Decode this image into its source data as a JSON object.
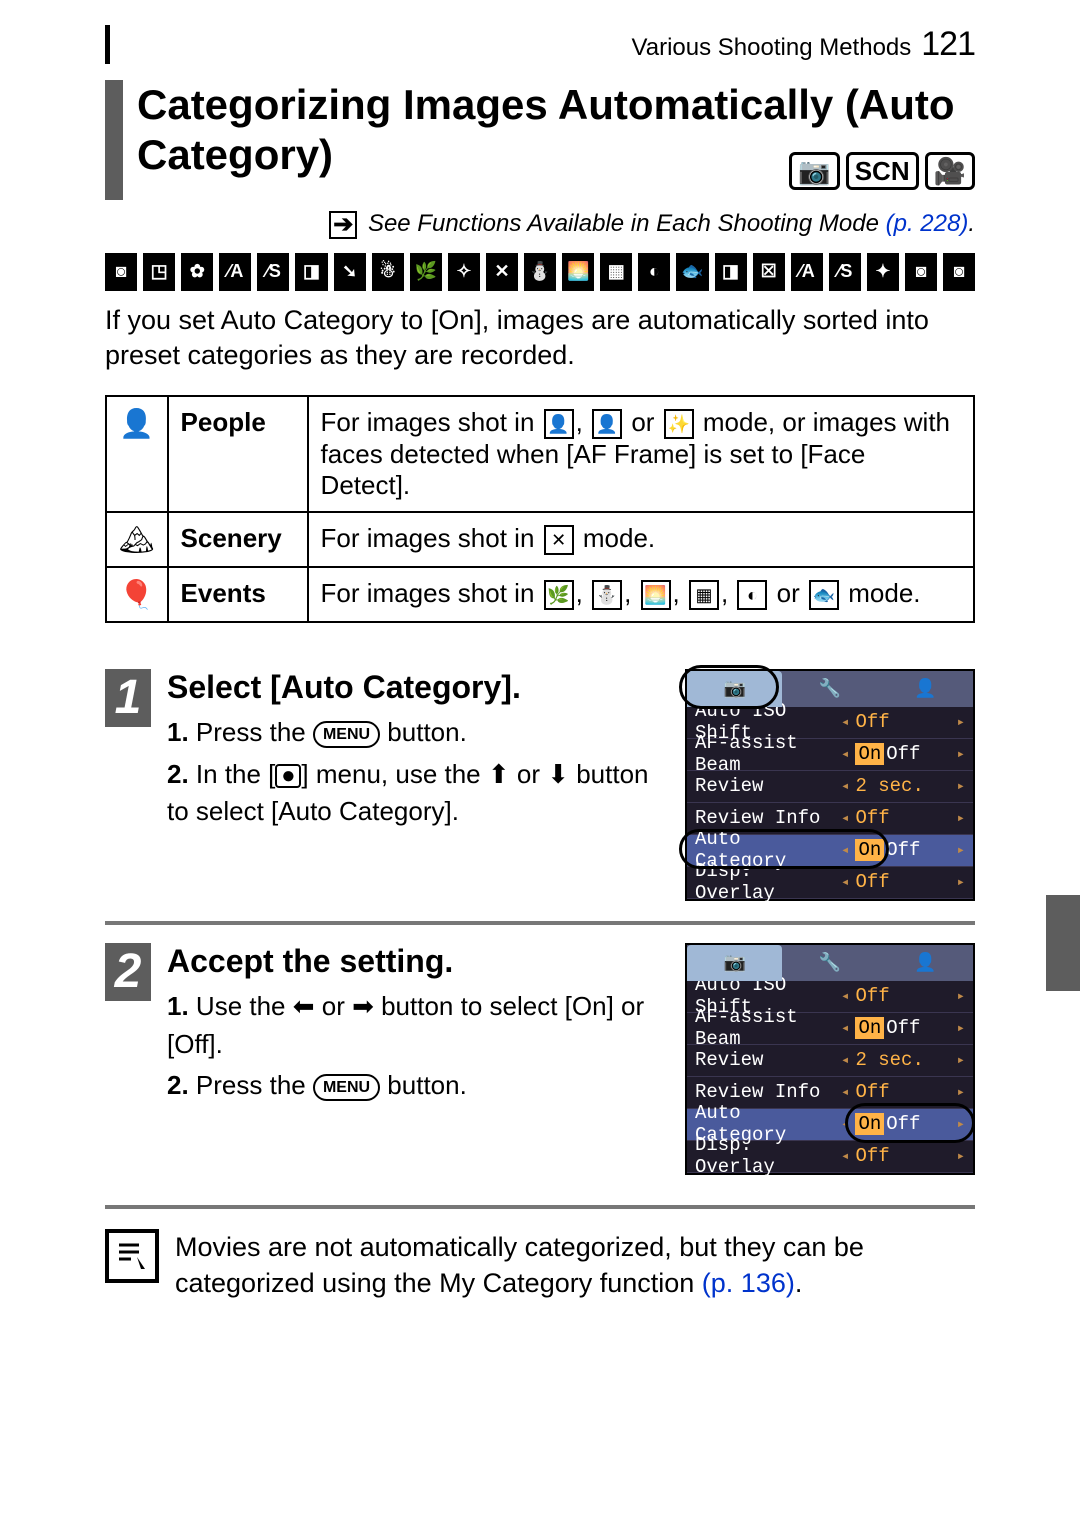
{
  "header": {
    "section": "Various Shooting Methods",
    "page_number": "121"
  },
  "title": "Categorizing Images Automatically (Auto Category)",
  "mode_badges": [
    "📷",
    "SCN",
    "🎥"
  ],
  "see_functions": {
    "prefix": "See Functions Available in Each Shooting Mode ",
    "page_ref": "(p. 228)",
    "link_color": "#0033cc"
  },
  "intro_text": "If you set Auto Category to [On], images are automatically sorted into preset categories as they are recorded.",
  "category_table": [
    {
      "icon": "👤",
      "label": "People",
      "desc_pre": "For images shot in ",
      "desc_modes": [
        "👤",
        "👤",
        "✨"
      ],
      "desc_post": " mode, or images with faces detected when [AF Frame] is set to [Face Detect]."
    },
    {
      "icon": "🏔",
      "label": "Scenery",
      "desc_pre": "For images shot in ",
      "desc_modes": [
        "✕"
      ],
      "desc_post": " mode."
    },
    {
      "icon": "🎈",
      "label": "Events",
      "desc_pre": "For images shot in ",
      "desc_modes": [
        "🌿",
        "⛄",
        "🌅",
        "▦",
        "◐",
        "🐟"
      ],
      "desc_post": " mode."
    }
  ],
  "steps": [
    {
      "num": "1",
      "title": "Select [Auto Category].",
      "lines": [
        {
          "n": "1.",
          "t": "Press the ",
          "btn": "MENU",
          "t2": " button."
        },
        {
          "n": "2.",
          "t": "In the [",
          "dot": "●",
          "t2": "] menu, use the ⬆ or ⬇ button to select [Auto Category]."
        }
      ],
      "screen": {
        "hl_row": 4,
        "circle_tab": true,
        "circle_row": true,
        "rows": [
          {
            "k": "Auto ISO Shift",
            "v": "Off",
            "on": ""
          },
          {
            "k": "AF-assist Beam",
            "v": "On Off",
            "on": "On"
          },
          {
            "k": "Review",
            "v": "2 sec.",
            "on": ""
          },
          {
            "k": "Review Info",
            "v": "Off",
            "on": ""
          },
          {
            "k": "Auto Category",
            "v": "On Off",
            "on": "On",
            "highlight": true
          },
          {
            "k": "Disp. Overlay",
            "v": "Off",
            "on": ""
          }
        ]
      }
    },
    {
      "num": "2",
      "title": "Accept the setting.",
      "lines": [
        {
          "n": "1.",
          "t": "Use the ⬅ or ➡ button to select [On] or [Off]."
        },
        {
          "n": "2.",
          "t": "Press the ",
          "btn": "MENU",
          "t2": " button."
        }
      ],
      "screen": {
        "hl_row": 4,
        "circle_tab": false,
        "circle_value": true,
        "rows": [
          {
            "k": "Auto ISO Shift",
            "v": "Off",
            "on": ""
          },
          {
            "k": "AF-assist Beam",
            "v": "On Off",
            "on": "On"
          },
          {
            "k": "Review",
            "v": "2 sec.",
            "on": ""
          },
          {
            "k": "Review Info",
            "v": "Off",
            "on": ""
          },
          {
            "k": "Auto Category",
            "v": "On Off",
            "on": "On",
            "highlight": true
          },
          {
            "k": "Disp. Overlay",
            "v": "Off",
            "on": ""
          }
        ]
      }
    }
  ],
  "bottom_note": {
    "text_pre": "Movies are not automatically categorized, but they can be categorized using the My Category function ",
    "page_ref": "(p. 136)",
    "suffix": "."
  },
  "mode_strip_count": 23,
  "colors": {
    "bar": "#5d5d5d",
    "link": "#0033cc",
    "screen_bg": "#1f1b2a",
    "screen_hl": "#4a5a9c",
    "orange": "#ffb347"
  }
}
